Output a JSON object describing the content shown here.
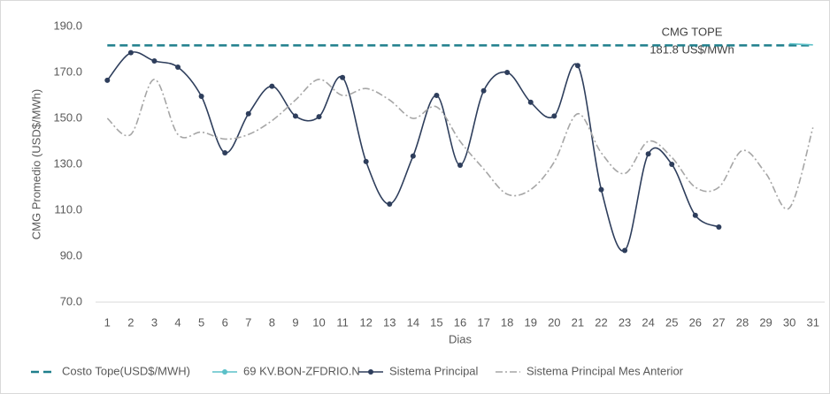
{
  "chart_data": {
    "type": "line",
    "y_axis_label": "CMG Promedio (USD$/MWh)",
    "x_axis_label": "Dias",
    "categories": [
      "1",
      "2",
      "3",
      "4",
      "5",
      "6",
      "7",
      "8",
      "9",
      "10",
      "11",
      "12",
      "13",
      "14",
      "15",
      "16",
      "17",
      "18",
      "19",
      "20",
      "21",
      "22",
      "23",
      "24",
      "25",
      "26",
      "27",
      "28",
      "29",
      "30",
      "31"
    ],
    "ylim": [
      70,
      190
    ],
    "yticks": [
      {
        "value": 70,
        "label": "70.0"
      },
      {
        "value": 90,
        "label": "90.0"
      },
      {
        "value": 110,
        "label": "110.0"
      },
      {
        "value": 130,
        "label": "130.0"
      },
      {
        "value": 150,
        "label": "150.0"
      },
      {
        "value": 170,
        "label": "170.0"
      },
      {
        "value": 190,
        "label": "190.0"
      }
    ],
    "grid": false,
    "legend": "bottom",
    "annotations": [
      "CMG TOPE",
      "181.8 US$/MWh"
    ],
    "series": [
      {
        "name": "Costo Tope(USD$/MWH)",
        "color": "#1f7f8c",
        "style": "dashed",
        "values": [
          181.8,
          181.8,
          181.8,
          181.8,
          181.8,
          181.8,
          181.8,
          181.8,
          181.8,
          181.8,
          181.8,
          181.8,
          181.8,
          181.8,
          181.8,
          181.8,
          181.8,
          181.8,
          181.8,
          181.8,
          181.8,
          181.8,
          181.8,
          181.8,
          181.8,
          181.8,
          181.8,
          181.8,
          181.8,
          181.8,
          181.8
        ]
      },
      {
        "name": "69 KV.BON-ZFDRIO.N",
        "color": "#5bc0c8",
        "style": "solid",
        "values": [
          null,
          null,
          null,
          null,
          null,
          null,
          null,
          null,
          null,
          null,
          null,
          null,
          null,
          null,
          null,
          null,
          null,
          null,
          null,
          null,
          null,
          null,
          null,
          null,
          null,
          null,
          null,
          null,
          null,
          182.5,
          182
        ]
      },
      {
        "name": "Sistema Principal",
        "color": "#2e3e5c",
        "style": "markers",
        "values": [
          166.6,
          178.6,
          175,
          172.3,
          159.6,
          135,
          152,
          164,
          151,
          150.7,
          167.8,
          131.2,
          112.7,
          133.6,
          160,
          129.6,
          162,
          170,
          157,
          151,
          173,
          119,
          92.5,
          134.5,
          130,
          107.8,
          102.7,
          null,
          null,
          null,
          null
        ]
      },
      {
        "name": "Sistema Principal Mes Anterior",
        "color": "#a6a6a6",
        "style": "dashdot",
        "values": [
          150,
          143,
          167,
          143,
          144,
          141,
          143,
          149,
          158,
          167,
          160,
          163,
          158,
          150,
          155,
          140,
          128,
          117,
          119,
          131,
          152,
          135,
          126,
          140,
          133,
          120,
          120,
          136,
          126,
          111,
          146
        ]
      }
    ]
  }
}
